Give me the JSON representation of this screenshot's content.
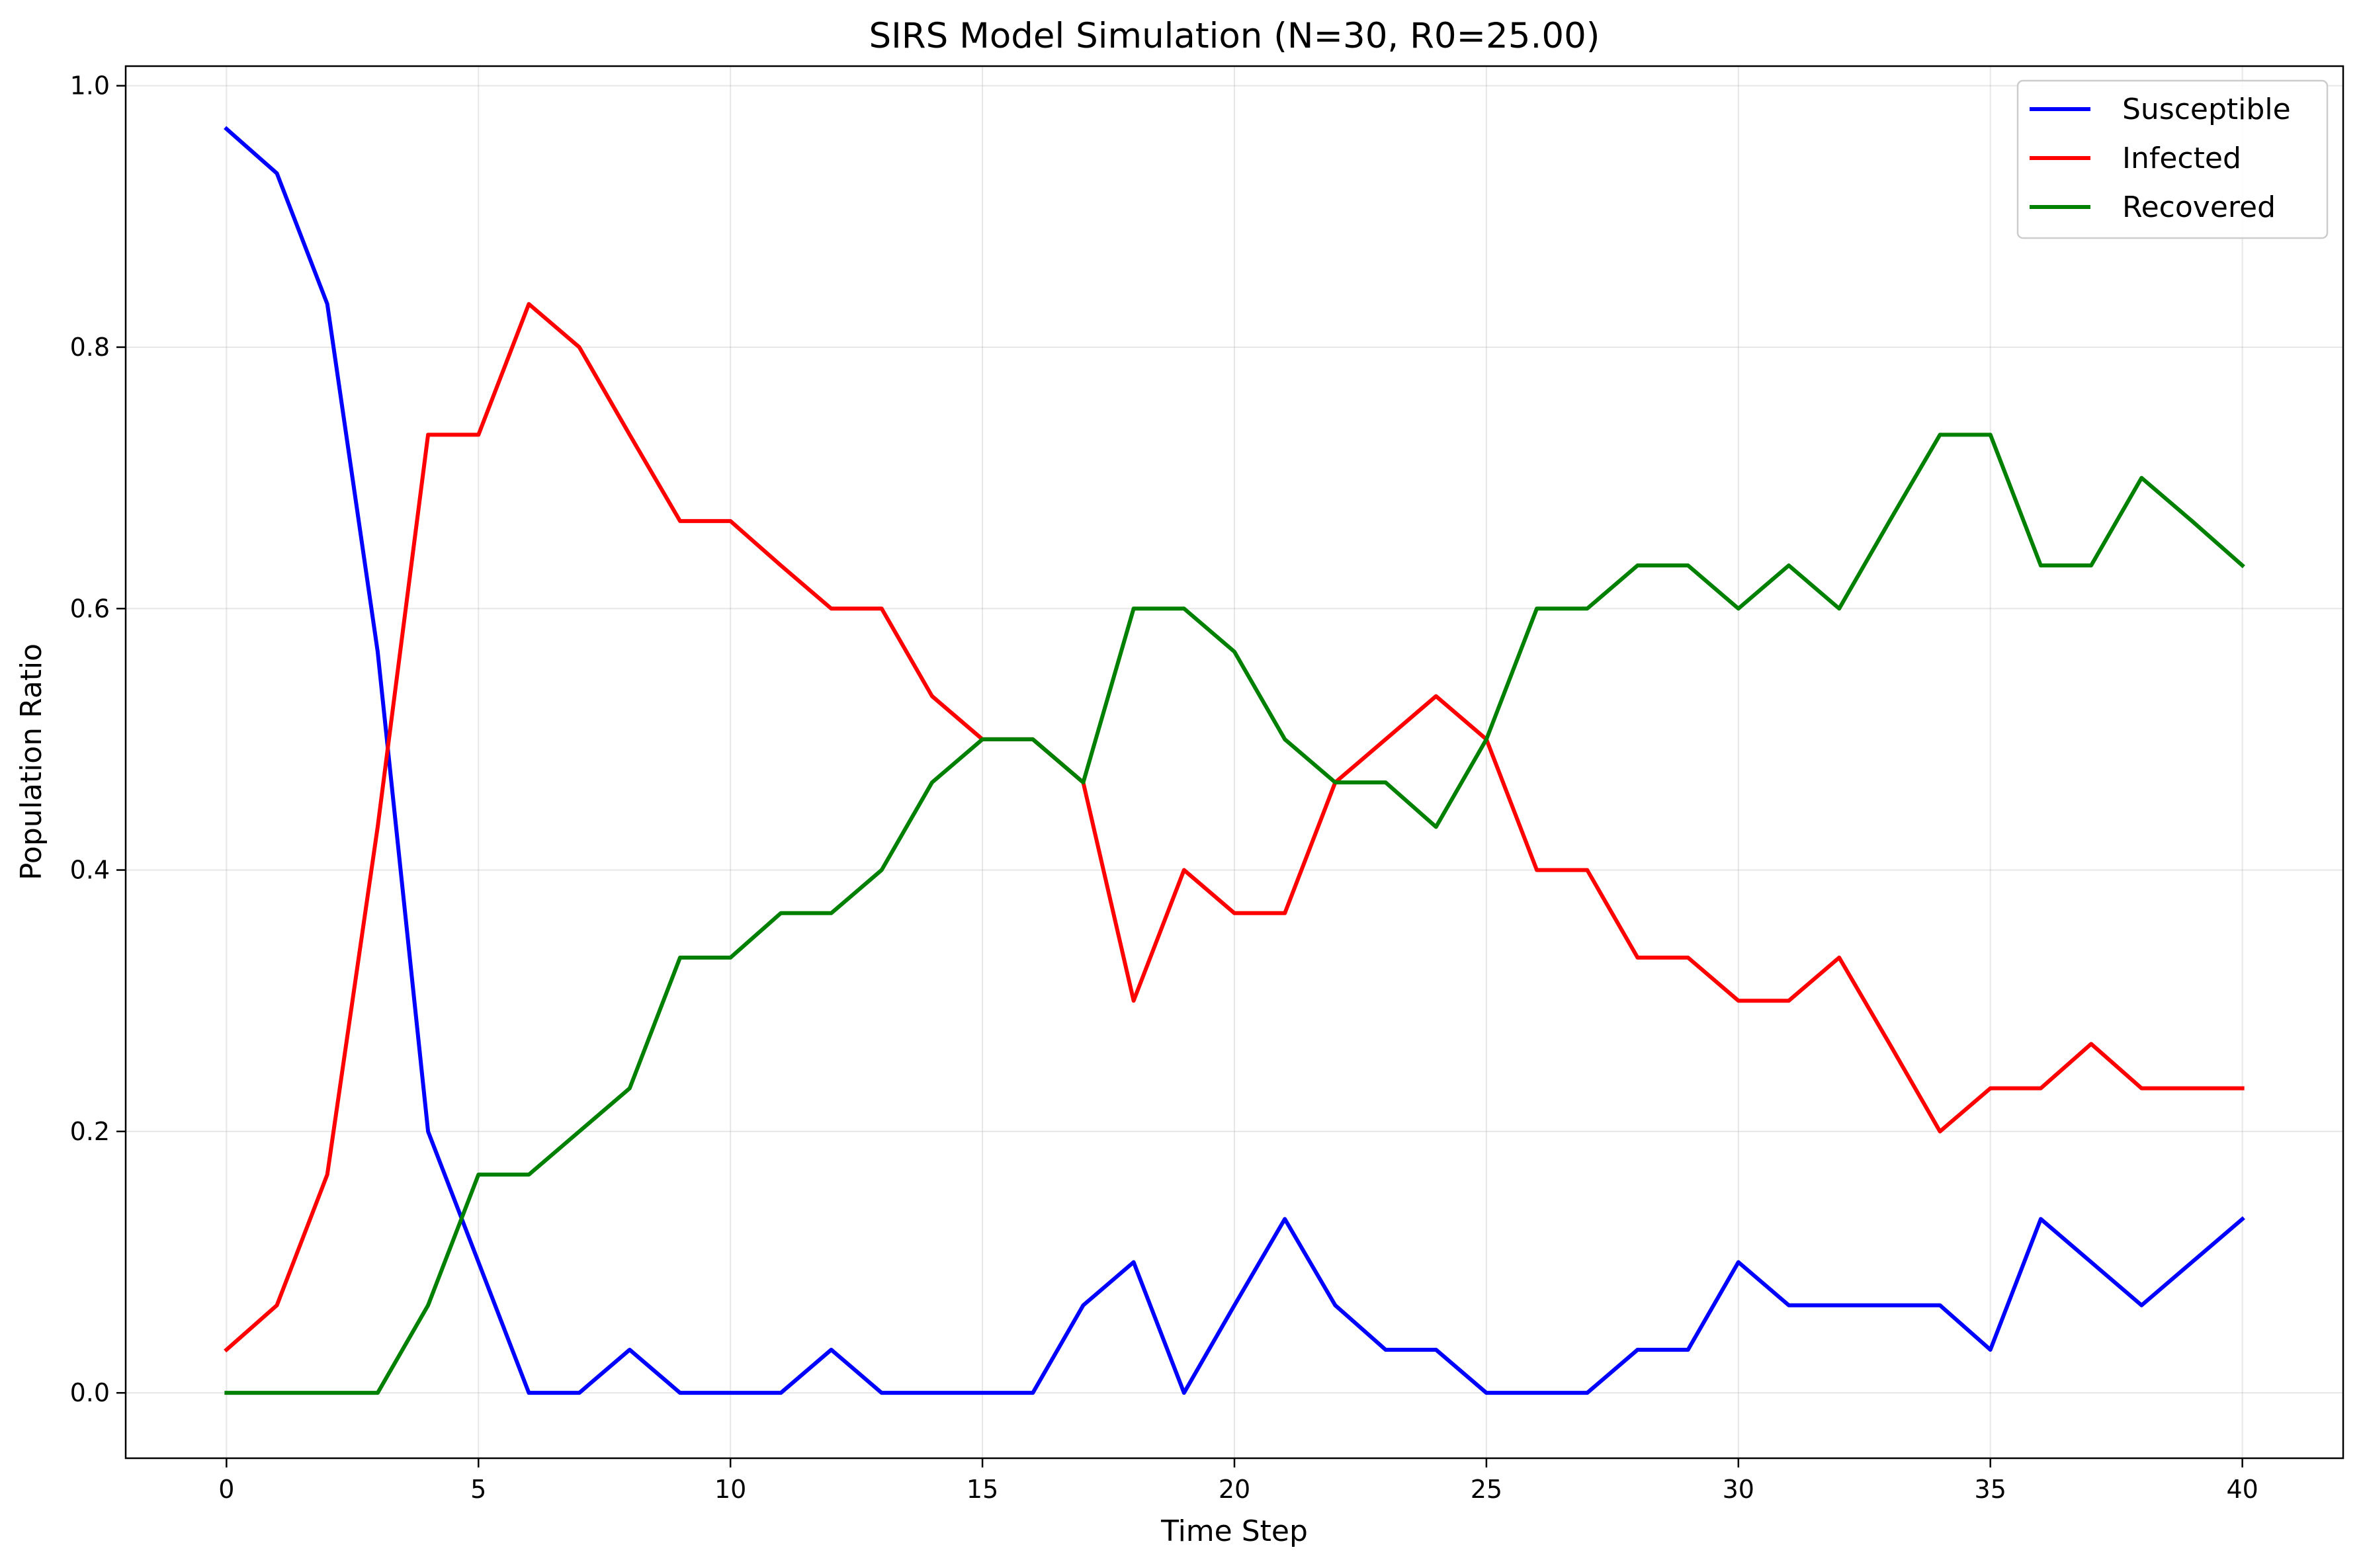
{
  "chart_data": {
    "type": "line",
    "title": "SIRS Model Simulation (N=30, R0=25.00)",
    "xlabel": "Time Step",
    "ylabel": "Population Ratio",
    "xlim": [
      -2,
      42
    ],
    "ylim": [
      -0.05,
      1.015
    ],
    "xticks": [
      0,
      5,
      10,
      15,
      20,
      25,
      30,
      35,
      40
    ],
    "yticks": [
      0.0,
      0.2,
      0.4,
      0.6,
      0.8,
      1.0
    ],
    "xtick_labels": [
      "0",
      "5",
      "10",
      "15",
      "20",
      "25",
      "30",
      "35",
      "40"
    ],
    "ytick_labels": [
      "0.0",
      "0.2",
      "0.4",
      "0.6",
      "0.8",
      "1.0"
    ],
    "grid": true,
    "legend_position": "top-right",
    "x": [
      0,
      1,
      2,
      3,
      4,
      5,
      6,
      7,
      8,
      9,
      10,
      11,
      12,
      13,
      14,
      15,
      16,
      17,
      18,
      19,
      20,
      21,
      22,
      23,
      24,
      25,
      26,
      27,
      28,
      29,
      30,
      31,
      32,
      33,
      34,
      35,
      36,
      37,
      38,
      39,
      40
    ],
    "series": [
      {
        "name": "Susceptible",
        "color": "#0000ff",
        "values": [
          0.967,
          0.933,
          0.833,
          0.567,
          0.2,
          0.1,
          0.0,
          0.0,
          0.033,
          0.0,
          0.0,
          0.0,
          0.033,
          0.0,
          0.0,
          0.0,
          0.0,
          0.067,
          0.1,
          0.0,
          0.067,
          0.133,
          0.067,
          0.033,
          0.033,
          0.0,
          0.0,
          0.0,
          0.033,
          0.033,
          0.1,
          0.067,
          0.067,
          0.067,
          0.067,
          0.033,
          0.133,
          0.1,
          0.067,
          0.1,
          0.133
        ]
      },
      {
        "name": "Infected",
        "color": "#ff0000",
        "values": [
          0.033,
          0.067,
          0.167,
          0.433,
          0.733,
          0.733,
          0.833,
          0.8,
          0.733,
          0.667,
          0.667,
          0.633,
          0.6,
          0.6,
          0.533,
          0.5,
          0.5,
          0.467,
          0.3,
          0.4,
          0.367,
          0.367,
          0.467,
          0.5,
          0.533,
          0.5,
          0.4,
          0.4,
          0.333,
          0.333,
          0.3,
          0.3,
          0.333,
          0.267,
          0.2,
          0.233,
          0.233,
          0.267,
          0.233,
          0.233,
          0.233
        ]
      },
      {
        "name": "Recovered",
        "color": "#008000",
        "values": [
          0.0,
          0.0,
          0.0,
          0.0,
          0.067,
          0.167,
          0.167,
          0.2,
          0.233,
          0.333,
          0.333,
          0.367,
          0.367,
          0.4,
          0.467,
          0.5,
          0.5,
          0.467,
          0.6,
          0.6,
          0.567,
          0.5,
          0.467,
          0.467,
          0.433,
          0.5,
          0.6,
          0.6,
          0.633,
          0.633,
          0.6,
          0.633,
          0.6,
          0.667,
          0.733,
          0.733,
          0.633,
          0.633,
          0.7,
          0.667,
          0.633
        ]
      }
    ]
  }
}
